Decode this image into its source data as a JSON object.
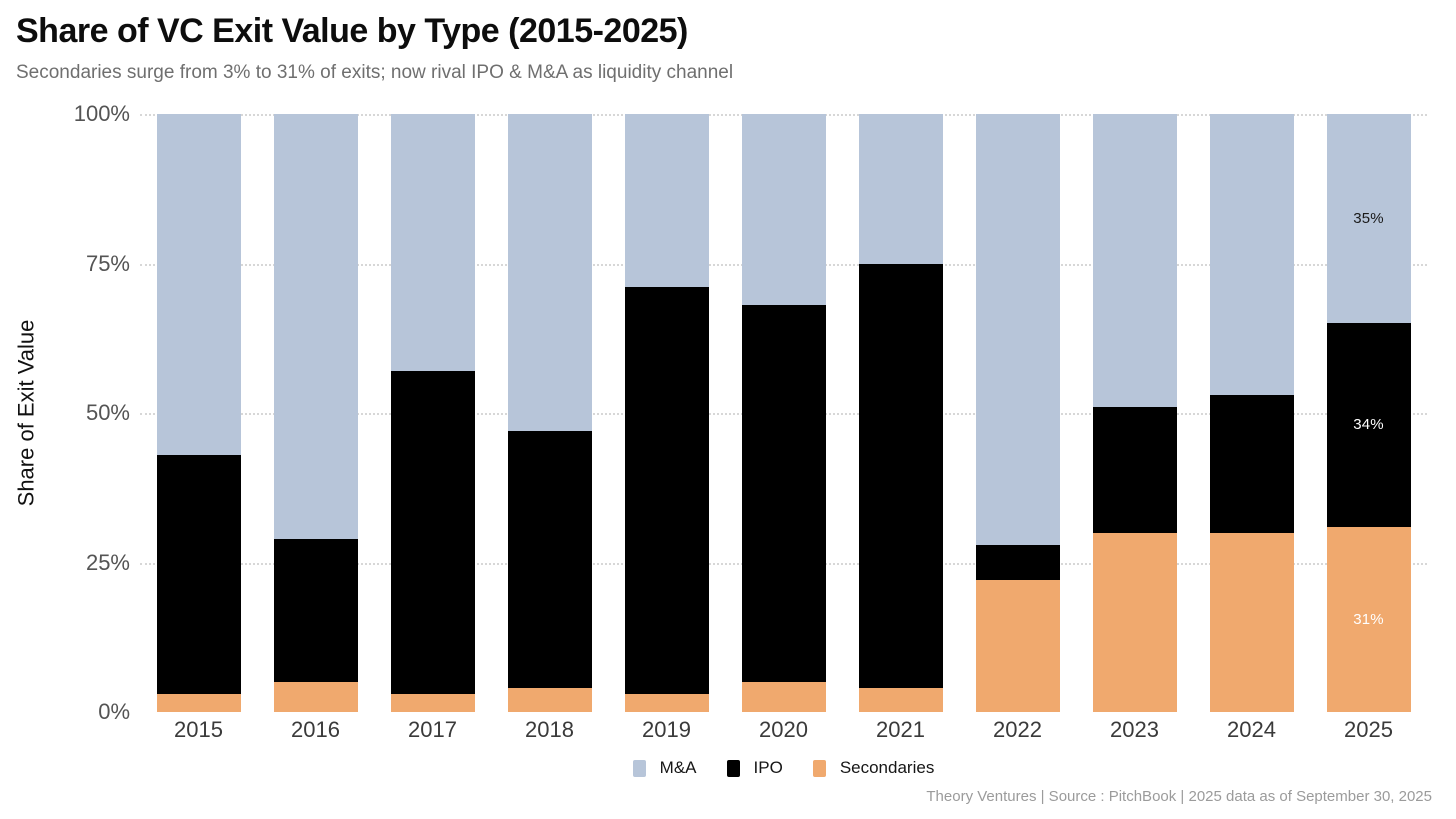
{
  "chart_data": {
    "type": "bar",
    "stacked": true,
    "title": "Share of VC Exit Value by Type (2015-2025)",
    "subtitle": "Secondaries surge from 3% to 31% of exits; now rival IPO & M&A as liquidity channel",
    "ylabel": "Share of Exit Value",
    "xlabel": "",
    "ylim": [
      0,
      100
    ],
    "grid": "dotted horizontal",
    "y_ticks": [
      {
        "value": 0,
        "label": "0%"
      },
      {
        "value": 25,
        "label": "25%"
      },
      {
        "value": 50,
        "label": "50%"
      },
      {
        "value": 75,
        "label": "75%"
      },
      {
        "value": 100,
        "label": "100%"
      }
    ],
    "gridlines_at": [
      25,
      50,
      75,
      100
    ],
    "categories": [
      "2015",
      "2016",
      "2017",
      "2018",
      "2019",
      "2020",
      "2021",
      "2022",
      "2023",
      "2024",
      "2025"
    ],
    "series": [
      {
        "name": "M&A",
        "color": "#b7c5d9",
        "values": [
          57,
          71,
          43,
          53,
          29,
          32,
          25,
          72,
          49,
          47,
          35
        ]
      },
      {
        "name": "IPO",
        "color": "#000000",
        "values": [
          40,
          24,
          54,
          43,
          68,
          63,
          71,
          6,
          21,
          23,
          34
        ]
      },
      {
        "name": "Secondaries",
        "color": "#f0a96e",
        "values": [
          3,
          5,
          3,
          4,
          3,
          5,
          4,
          22,
          30,
          30,
          31
        ]
      }
    ],
    "stack_order_bottom_to_top": [
      "Secondaries",
      "IPO",
      "M&A"
    ],
    "value_labels": {
      "category": "2025",
      "entries": [
        {
          "series": "M&A",
          "text": "35%",
          "text_color": "#1a1a1a"
        },
        {
          "series": "IPO",
          "text": "34%",
          "text_color": "#ffffff"
        },
        {
          "series": "Secondaries",
          "text": "31%",
          "text_color": "#ffffff"
        }
      ]
    },
    "legend": {
      "position": "bottom-center",
      "items": [
        "M&A",
        "IPO",
        "Secondaries"
      ]
    },
    "source_note": "Theory Ventures | Source : PitchBook | 2025 data as of September 30, 2025"
  }
}
